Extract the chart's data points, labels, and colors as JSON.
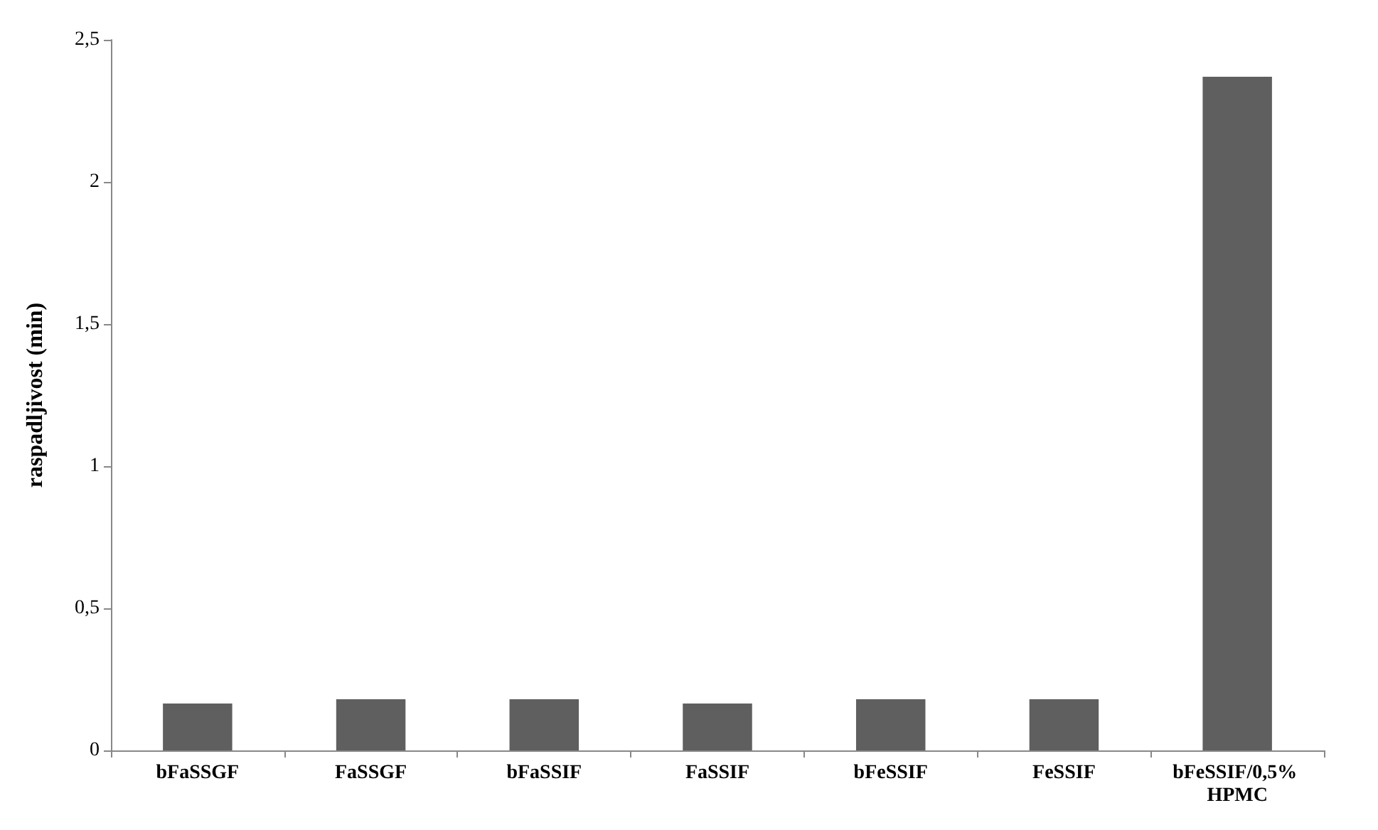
{
  "chart_data": {
    "type": "bar",
    "ylabel": "raspadljivost (min)",
    "categories": [
      "bFaSSGF",
      "FaSSGF",
      "bFaSSIF",
      "FaSSIF",
      "bFeSSIF",
      "FeSSIF",
      "bFeSSIF/0,5% HPMC"
    ],
    "values": [
      0.165,
      0.18,
      0.18,
      0.165,
      0.18,
      0.18,
      2.37
    ],
    "color": "#5f5f5f",
    "ylim": [
      0,
      2.5
    ],
    "yticks": [
      0,
      {
        "value": 0.5,
        "label": "0,5"
      },
      1,
      {
        "value": 1.5,
        "label": "1,5"
      },
      2,
      {
        "value": 2.5,
        "label": "2,5"
      }
    ],
    "grid": false
  }
}
